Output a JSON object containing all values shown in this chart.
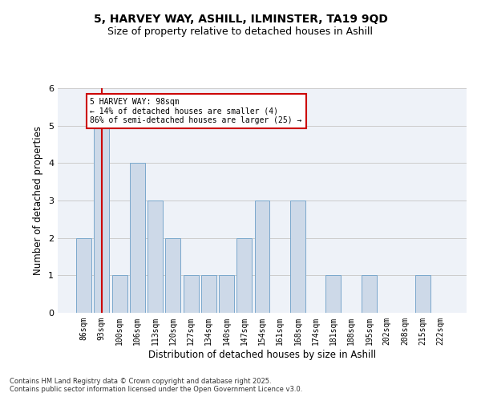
{
  "title1": "5, HARVEY WAY, ASHILL, ILMINSTER, TA19 9QD",
  "title2": "Size of property relative to detached houses in Ashill",
  "xlabel": "Distribution of detached houses by size in Ashill",
  "ylabel": "Number of detached properties",
  "categories": [
    "86sqm",
    "93sqm",
    "100sqm",
    "106sqm",
    "113sqm",
    "120sqm",
    "127sqm",
    "134sqm",
    "140sqm",
    "147sqm",
    "154sqm",
    "161sqm",
    "168sqm",
    "174sqm",
    "181sqm",
    "188sqm",
    "195sqm",
    "202sqm",
    "208sqm",
    "215sqm",
    "222sqm"
  ],
  "values": [
    2,
    5,
    1,
    4,
    3,
    2,
    1,
    1,
    1,
    2,
    3,
    0,
    3,
    0,
    1,
    0,
    1,
    0,
    0,
    1,
    0
  ],
  "bar_color": "#cdd9e8",
  "bar_edge_color": "#7aa8cc",
  "reference_line_x": 1,
  "reference_line_color": "#cc0000",
  "annotation_text": "5 HARVEY WAY: 98sqm\n← 14% of detached houses are smaller (4)\n86% of semi-detached houses are larger (25) →",
  "annotation_box_color": "#ffffff",
  "annotation_box_edge": "#cc0000",
  "footer": "Contains HM Land Registry data © Crown copyright and database right 2025.\nContains public sector information licensed under the Open Government Licence v3.0.",
  "ylim": [
    0,
    6
  ],
  "yticks": [
    0,
    1,
    2,
    3,
    4,
    5,
    6
  ],
  "grid_color": "#cccccc",
  "bg_color": "#eef2f8"
}
